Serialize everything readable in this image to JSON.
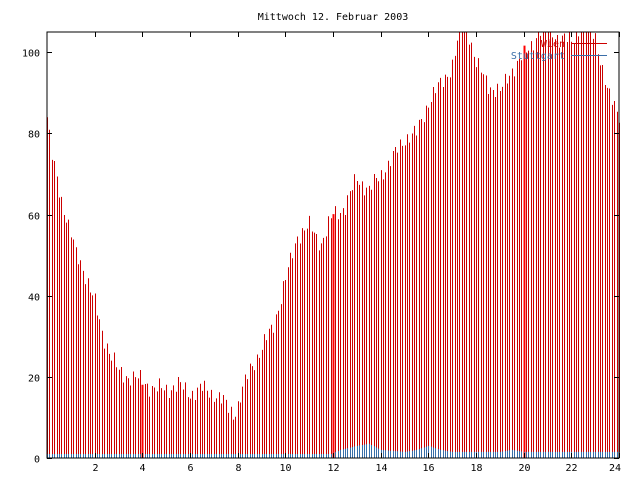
{
  "chart_data": {
    "type": "bar",
    "title": "Mittwoch 12. Februar 2003",
    "xlabel": "",
    "ylabel": "",
    "xlim": [
      0,
      24
    ],
    "ylim": [
      0,
      105
    ],
    "x_ticks": [
      {
        "value": 2,
        "label": "2"
      },
      {
        "value": 4,
        "label": "4"
      },
      {
        "value": 6,
        "label": "6"
      },
      {
        "value": 8,
        "label": "8"
      },
      {
        "value": 10,
        "label": "10"
      },
      {
        "value": 12,
        "label": "12"
      },
      {
        "value": 14,
        "label": "14"
      },
      {
        "value": 16,
        "label": "16"
      },
      {
        "value": 18,
        "label": "18"
      },
      {
        "value": 20,
        "label": "20"
      },
      {
        "value": 22,
        "label": "22"
      },
      {
        "value": 24,
        "label": "24"
      }
    ],
    "y_ticks": [
      {
        "value": 0,
        "label": "0"
      },
      {
        "value": 20,
        "label": "20"
      },
      {
        "value": 40,
        "label": "40"
      },
      {
        "value": 60,
        "label": "60"
      },
      {
        "value": 80,
        "label": "80"
      },
      {
        "value": 100,
        "label": "100"
      }
    ],
    "grid": false,
    "legend_position": "top-right",
    "series": [
      {
        "name": "Wien",
        "style": "impulses",
        "color": "#cc0000",
        "highlight_color": "#ff0000",
        "highlight_x": [
          4,
          12,
          20
        ],
        "profile_x": [
          0,
          0.2,
          0.5,
          1.0,
          1.2,
          1.5,
          2.0,
          2.3,
          2.7,
          3.0,
          3.5,
          4.0,
          4.5,
          5.0,
          5.5,
          6.0,
          6.5,
          7.0,
          7.5,
          7.8,
          8.0,
          8.5,
          9.0,
          9.5,
          10.0,
          10.5,
          11.0,
          11.5,
          12.0,
          12.5,
          13.0,
          13.5,
          14.0,
          14.5,
          15.0,
          15.5,
          16.0,
          16.5,
          17.0,
          17.3,
          17.6,
          18.0,
          18.5,
          19.0,
          19.5,
          20.0,
          20.5,
          21.0,
          21.5,
          22.0,
          22.5,
          23.0,
          23.5,
          24.0
        ],
        "profile_y": [
          84,
          74,
          66,
          55,
          50,
          47,
          38,
          31,
          25,
          21,
          20,
          19,
          17,
          17,
          18,
          16,
          17,
          16,
          13,
          11,
          13,
          22,
          27,
          33,
          44,
          55,
          57,
          53,
          60,
          62,
          69,
          66,
          70,
          74,
          79,
          80,
          88,
          92,
          97,
          105,
          107,
          97,
          92,
          90,
          96,
          99,
          104,
          107,
          103,
          103,
          108,
          104,
          90,
          85
        ]
      },
      {
        "name": "Stuttgart",
        "style": "impulses",
        "color": "#3a6ea8",
        "profile_x": [
          0,
          11.9,
          12.3,
          13.0,
          13.5,
          14.0,
          15.0,
          15.5,
          16.0,
          16.5,
          17.0,
          19.0,
          19.5,
          20.0,
          24.0
        ],
        "profile_y": [
          1,
          1,
          2,
          3,
          3.5,
          2,
          1.5,
          2,
          3,
          2,
          1.5,
          1.5,
          2,
          1.5,
          1.5
        ]
      }
    ]
  }
}
